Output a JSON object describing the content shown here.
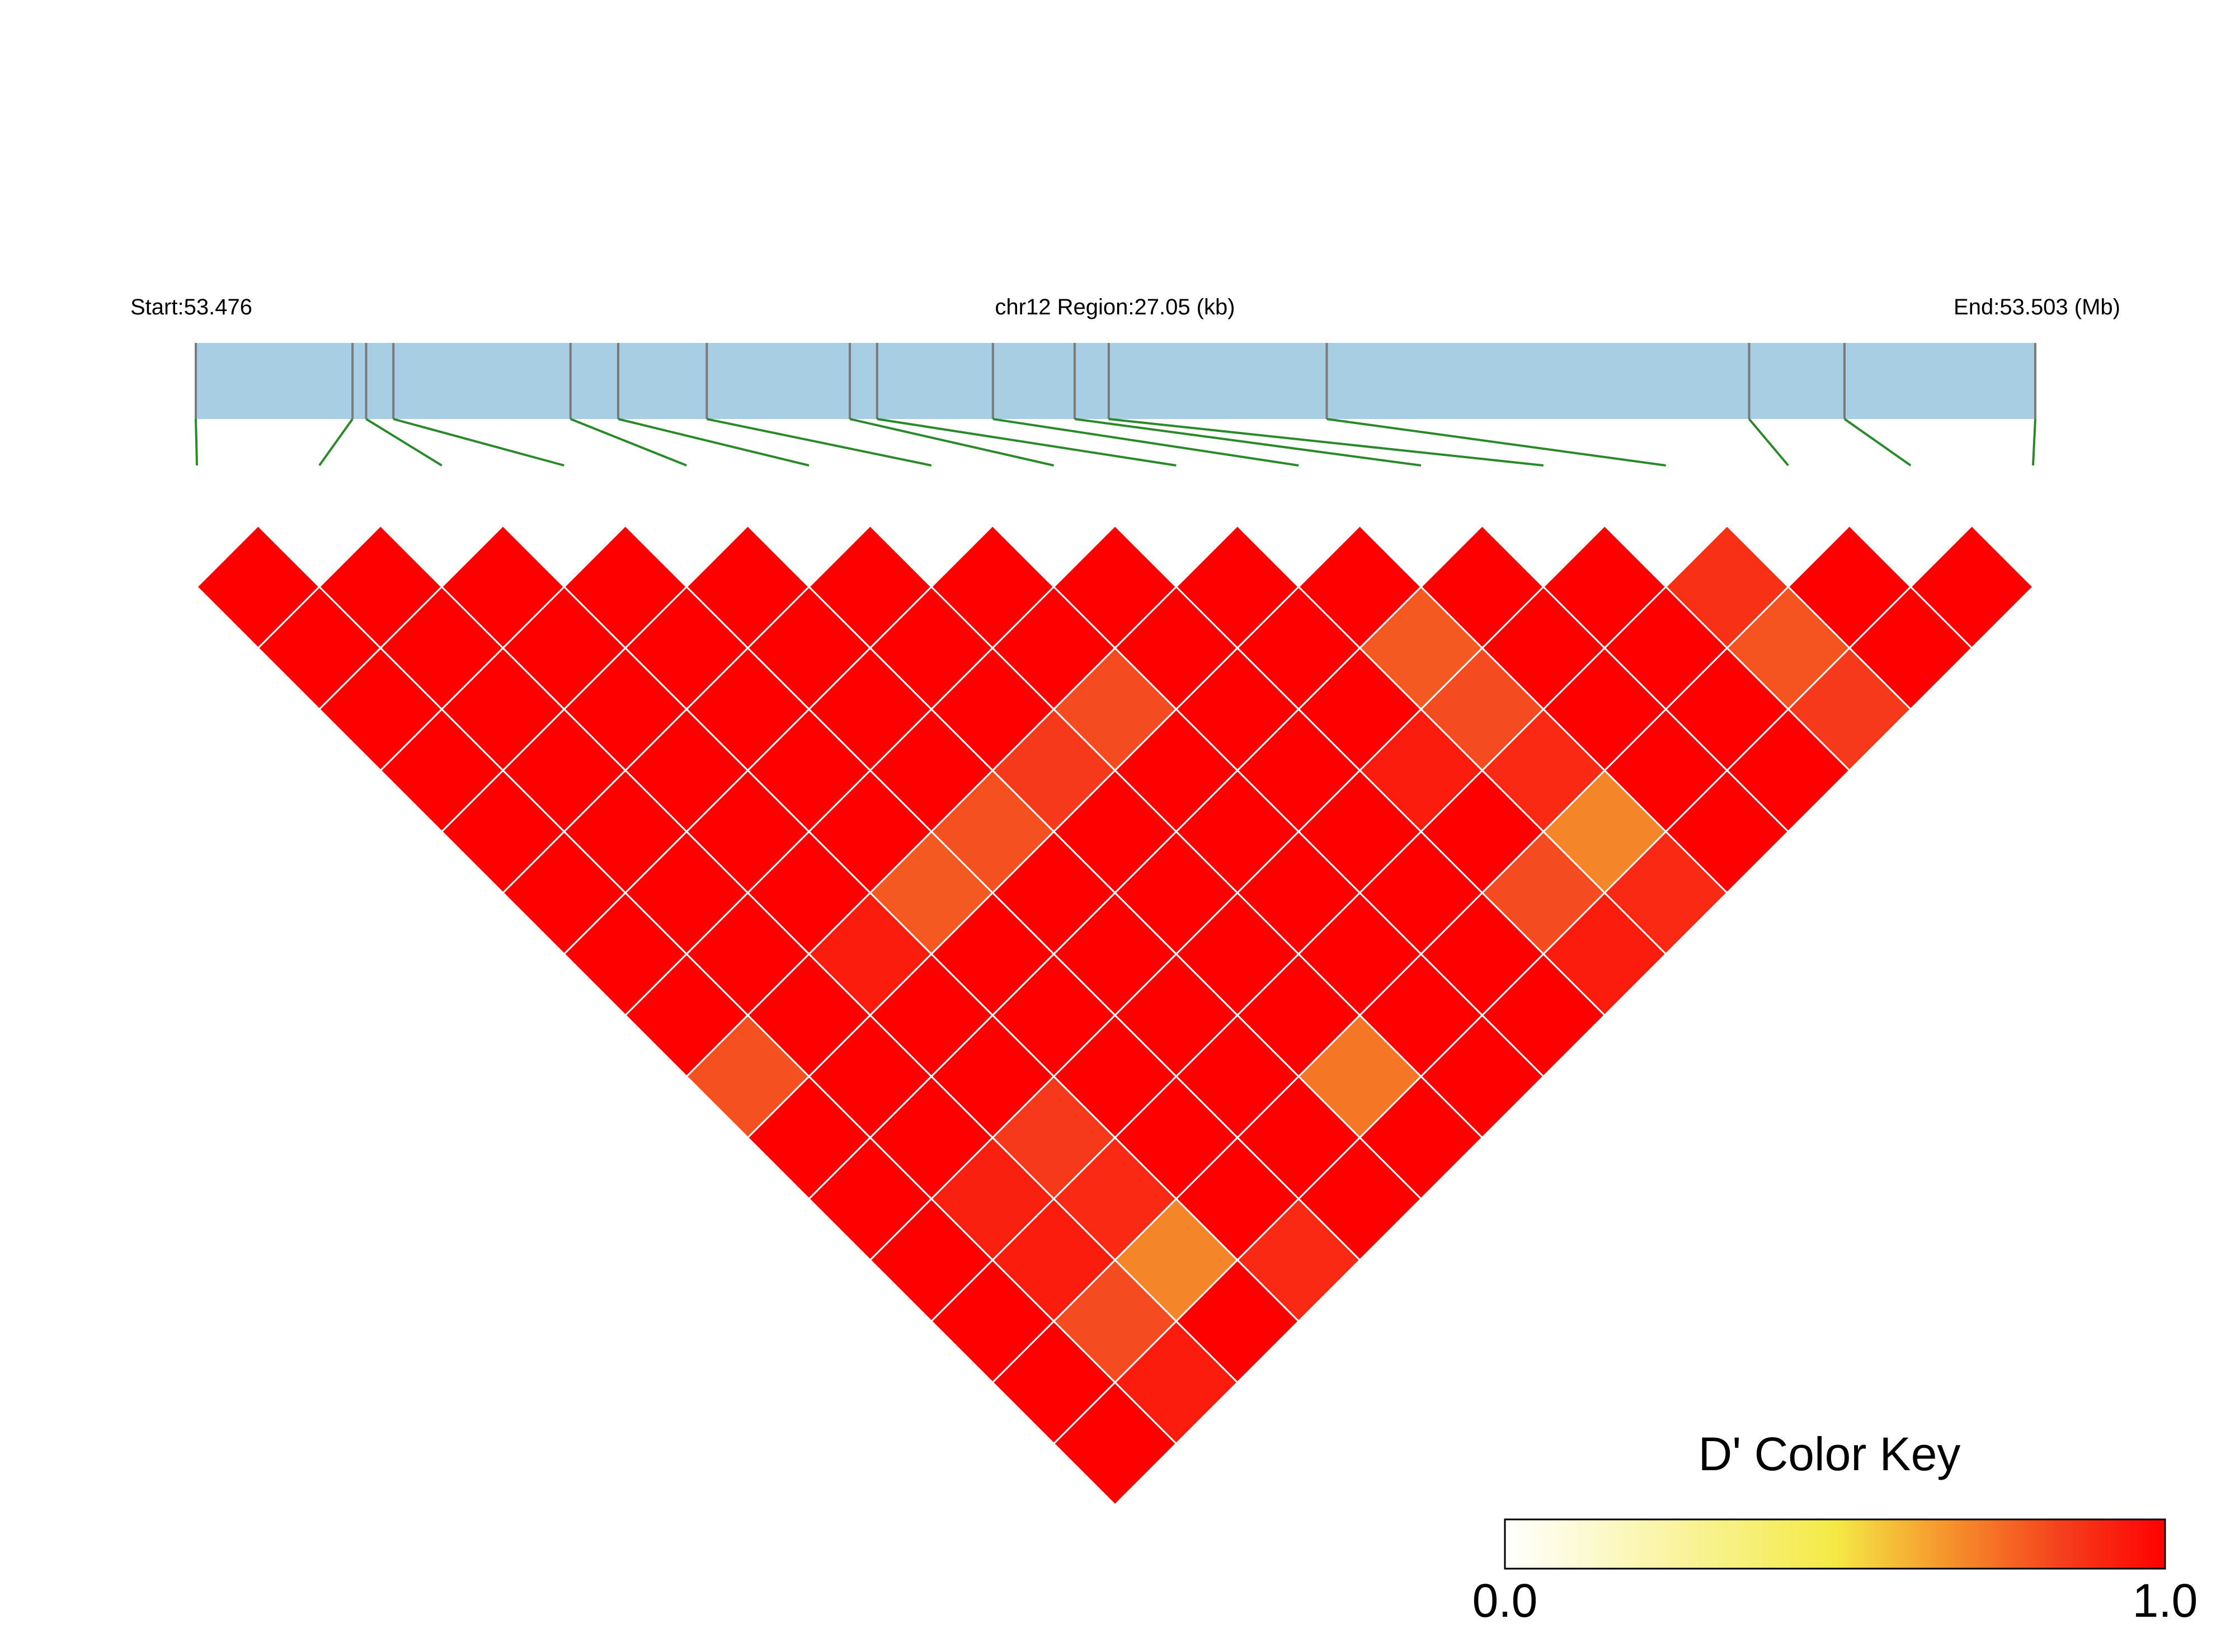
{
  "header": {
    "start_label": "Start:53.476",
    "region_label": "chr12 Region:27.05 (kb)",
    "end_label": "End:53.503 (Mb)"
  },
  "color_key": {
    "title": "D' Color Key",
    "min_label": "0.0",
    "max_label": "1.0",
    "colors": [
      "#ffffff",
      "#f4ea46",
      "#f58f2a",
      "#f5411e",
      "#ff0000"
    ]
  },
  "chart_data": {
    "type": "heatmap",
    "title": "",
    "metric": "D'",
    "chromosome": "chr12",
    "region_start_mb": 53.476,
    "region_end_mb": 53.503,
    "region_length_kb": 27.05,
    "snp_positions_mb": [
      53.476,
      53.4783,
      53.4785,
      53.4789,
      53.4815,
      53.4822,
      53.4835,
      53.4856,
      53.486,
      53.4877,
      53.4889,
      53.4894,
      53.4926,
      53.4988,
      53.5002,
      53.503
    ],
    "ld_d_prime_rows": [
      [
        1,
        1,
        1,
        1,
        1,
        1,
        1,
        1,
        1,
        1,
        1,
        1,
        0.88,
        1,
        1
      ],
      [
        1,
        1,
        1,
        1,
        1,
        1,
        1,
        1,
        1,
        0.79,
        1,
        1,
        0.8,
        1
      ],
      [
        1,
        1,
        1,
        1,
        1,
        1,
        0.82,
        1,
        1,
        0.82,
        1,
        1,
        0.86
      ],
      [
        1,
        1,
        1,
        1,
        1,
        0.86,
        1,
        1,
        0.93,
        0.9,
        1,
        1
      ],
      [
        1,
        1,
        1,
        1,
        0.81,
        1,
        1,
        1,
        1,
        0.7,
        1
      ],
      [
        1,
        1,
        1,
        0.79,
        1,
        1,
        1,
        1,
        0.82,
        0.9
      ],
      [
        1,
        1,
        0.93,
        1,
        1,
        1,
        1,
        1,
        0.93
      ],
      [
        1,
        1,
        1,
        1,
        1,
        1,
        1,
        1
      ],
      [
        0.81,
        1,
        1,
        1,
        1,
        0.73,
        1
      ],
      [
        1,
        1,
        0.86,
        1,
        1,
        1
      ],
      [
        1,
        0.92,
        0.9,
        1,
        1
      ],
      [
        1,
        0.93,
        0.7,
        0.9
      ],
      [
        1,
        0.82,
        1
      ],
      [
        1,
        0.93
      ],
      [
        1
      ]
    ]
  }
}
